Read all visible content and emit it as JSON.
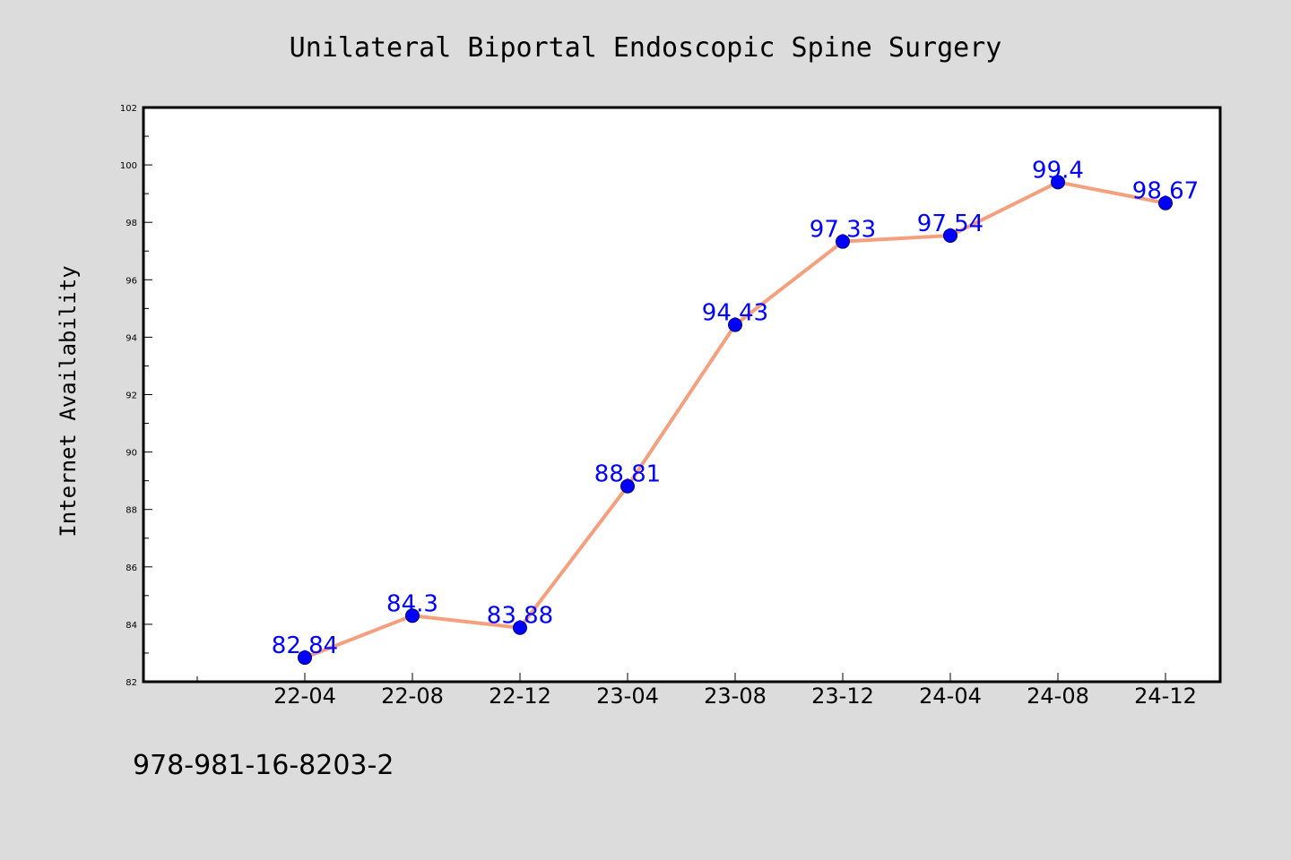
{
  "chart_data": {
    "type": "line",
    "title": "Unilateral Biportal Endoscopic Spine Surgery",
    "xlabel": "",
    "ylabel": "Internet Availability",
    "categories": [
      "22-04",
      "22-08",
      "22-12",
      "23-04",
      "23-08",
      "23-12",
      "24-04",
      "24-08",
      "24-12"
    ],
    "series": [
      {
        "values": [
          82.84,
          84.3,
          83.88,
          88.81,
          94.43,
          97.33,
          97.54,
          99.4,
          98.67
        ],
        "labels": [
          "82.84",
          "84.3",
          "83.88",
          "88.81",
          "94.43",
          "97.33",
          "97.54",
          "99.4",
          "98.67"
        ]
      }
    ],
    "ylim": [
      82,
      102
    ],
    "yticks": [
      82,
      84,
      86,
      88,
      90,
      92,
      94,
      96,
      98,
      100,
      102
    ],
    "ytick_labels": [
      "82",
      "84",
      "86",
      "88",
      "90",
      "92",
      "94",
      "96",
      "98",
      "100",
      "102"
    ],
    "grid": false,
    "line_color": "#f4a07f",
    "marker_color": "#0000ff",
    "label_color": "#0000ff"
  },
  "footer": {
    "isbn": "978-981-16-8203-2"
  }
}
